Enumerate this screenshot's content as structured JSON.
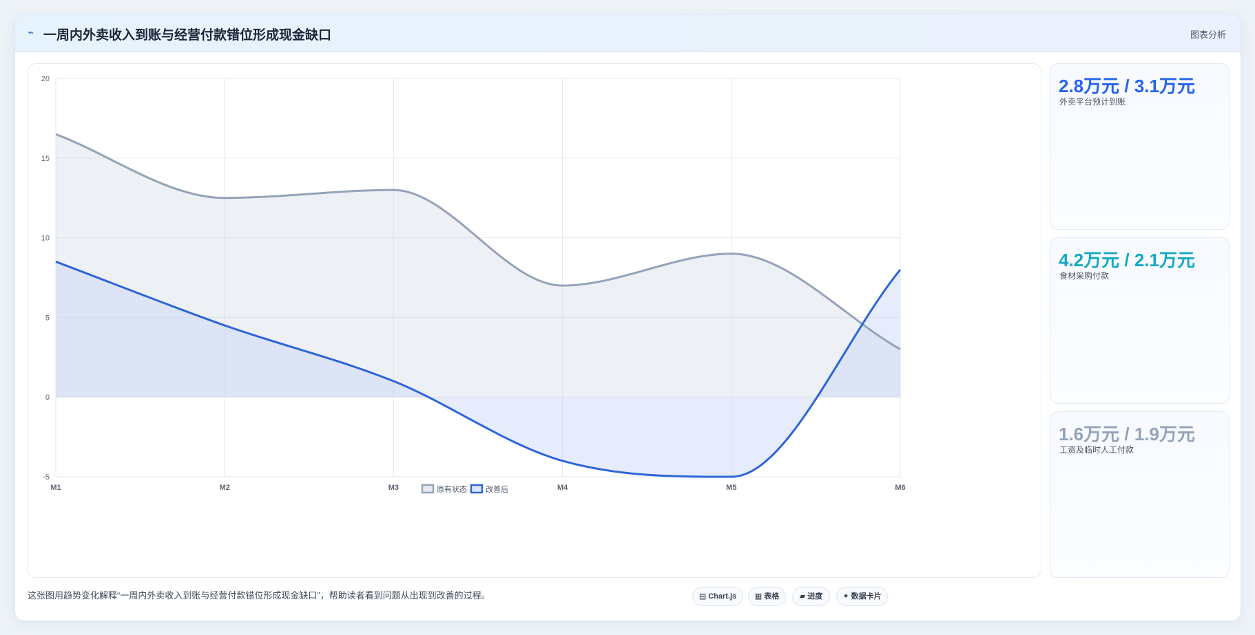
{
  "header": {
    "icon": "trend-icon",
    "title": "一周内外卖收入到账与经营付款错位形成现金缺口",
    "action": "图表分析"
  },
  "chart_data": {
    "type": "line",
    "categories": [
      "M1",
      "M2",
      "M3",
      "M4",
      "M5",
      "M6"
    ],
    "ylim": [
      -5,
      20
    ],
    "yticks": [
      20,
      15,
      10,
      5,
      0,
      -5
    ],
    "xlabel": "",
    "ylabel": "",
    "grid": true,
    "fill": "origin",
    "legend": "bottom",
    "series": [
      {
        "name": "原有状态",
        "values": [
          16.5,
          12.5,
          13,
          7,
          9,
          3
        ],
        "color": "#94a3b8",
        "fill": "#d8dee6"
      },
      {
        "name": "改善后",
        "values": [
          8.5,
          4.5,
          1,
          -4,
          -5,
          8
        ],
        "color": "#2d64d8",
        "fill": "#c8d4f7"
      }
    ]
  },
  "cards": [
    {
      "value": "2.8万元 / 3.1万元",
      "label": "外卖平台预计到账",
      "color": "#2563eb"
    },
    {
      "value": "4.2万元 / 2.1万元",
      "label": "食材采购付款",
      "color": "#14a9c4"
    },
    {
      "value": "1.6万元 / 1.9万元",
      "label": "工资及临时人工付款",
      "color": "#94a3b8"
    }
  ],
  "footer": {
    "description": "这张图用趋势变化解释“一周内外卖收入到账与经营付款错位形成现金缺口”，帮助读者看到问题从出现到改善的过程。",
    "chips": [
      {
        "icon": "chart-icon",
        "glyph": "▤",
        "label": "Chart.js"
      },
      {
        "icon": "table-icon",
        "glyph": "▦",
        "label": "表格"
      },
      {
        "icon": "progress-icon",
        "glyph": "▰",
        "label": "进度"
      },
      {
        "icon": "card-icon",
        "glyph": "✦",
        "label": "数据卡片"
      }
    ]
  }
}
